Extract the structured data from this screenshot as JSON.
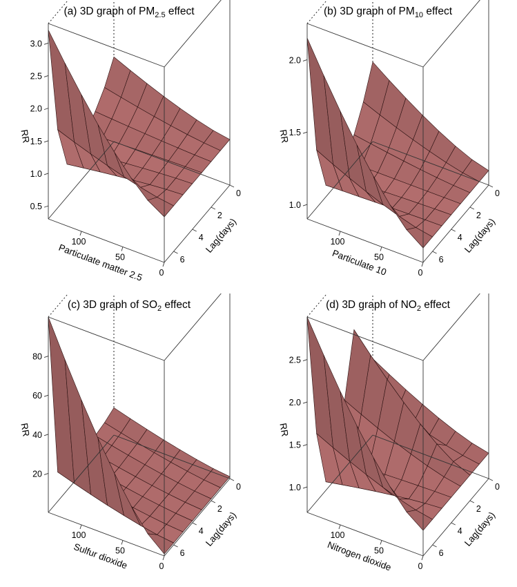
{
  "chart_data": [
    {
      "type": "surface3d",
      "panel": "a",
      "title": {
        "pre": "(a) 3D graph of PM",
        "sub": "2.5",
        "post": " effect"
      },
      "xlabel": "Particulate matter 2.5",
      "ylabel": "Lag(days)",
      "zlabel": "RR",
      "x_ticks": [
        "0",
        "50",
        "100"
      ],
      "y_ticks": [
        "0",
        "2",
        "4",
        "6"
      ],
      "z_ticks": [
        "0.5",
        "1.0",
        "1.5",
        "2.0",
        "2.5",
        "3.0"
      ],
      "xlim": [
        0,
        140
      ],
      "ylim": [
        0,
        7
      ],
      "zlim": [
        0.3,
        3.3
      ],
      "grid_x": [
        0,
        20,
        40,
        60,
        80,
        100,
        120,
        140
      ],
      "grid_lag": [
        0,
        1,
        2,
        3,
        4,
        5,
        6,
        7
      ],
      "rr_at_max_x": [
        1.6,
        1.3,
        1.1,
        0.95,
        0.85,
        0.8,
        1.5,
        3.2
      ],
      "surface_color": "#b56f6f"
    },
    {
      "type": "surface3d",
      "panel": "b",
      "title": {
        "pre": "(b) 3D graph of PM",
        "sub": "10",
        "post": " effect"
      },
      "xlabel": "Particulate 10",
      "ylabel": "Lag(days)",
      "zlabel": "RR",
      "x_ticks": [
        "0",
        "50",
        "100"
      ],
      "y_ticks": [
        "0",
        "2",
        "4",
        "6"
      ],
      "z_ticks": [
        "1.0",
        "1.5",
        "2.0"
      ],
      "xlim": [
        0,
        140
      ],
      "ylim": [
        0,
        7
      ],
      "zlim": [
        0.9,
        2.25
      ],
      "grid_x": [
        0,
        20,
        40,
        60,
        80,
        100,
        120,
        140
      ],
      "grid_lag": [
        0,
        1,
        2,
        3,
        4,
        5,
        6,
        7
      ],
      "rr_at_max_x": [
        1.45,
        1.25,
        1.1,
        1.0,
        0.97,
        0.98,
        1.3,
        2.15
      ],
      "surface_color": "#b56f6f"
    },
    {
      "type": "surface3d",
      "panel": "c",
      "title": {
        "pre": "(c) 3D graph of SO",
        "sub": "2",
        "post": " effect"
      },
      "xlabel": "Sulfur dioxide",
      "ylabel": "Lag(days)",
      "zlabel": "RR",
      "x_ticks": [
        "0",
        "50",
        "100"
      ],
      "y_ticks": [
        "0",
        "2",
        "4",
        "6"
      ],
      "z_ticks": [
        "20",
        "40",
        "60",
        "80"
      ],
      "xlim": [
        0,
        140
      ],
      "ylim": [
        0,
        7
      ],
      "zlim": [
        0,
        100
      ],
      "grid_x": [
        0,
        20,
        40,
        60,
        80,
        100,
        120,
        140
      ],
      "grid_lag": [
        0,
        1,
        2,
        3,
        4,
        5,
        6,
        7
      ],
      "rr_at_max_x": [
        14,
        12,
        11,
        10,
        10,
        10,
        15,
        100
      ],
      "surface_color": "#b56f6f"
    },
    {
      "type": "surface3d",
      "panel": "d",
      "title": {
        "pre": "(d) 3D graph of NO",
        "sub": "2",
        "post": " effect"
      },
      "xlabel": "Nitrogen dioxide",
      "ylabel": "Lag(days)",
      "zlabel": "RR",
      "x_ticks": [
        "0",
        "50",
        "100"
      ],
      "y_ticks": [
        "0",
        "2",
        "4",
        "6"
      ],
      "z_ticks": [
        "1.0",
        "1.5",
        "2.0",
        "2.5"
      ],
      "xlim": [
        0,
        140
      ],
      "ylim": [
        0,
        7
      ],
      "zlim": [
        0.7,
        3.0
      ],
      "grid_x": [
        0,
        20,
        40,
        60,
        80,
        100,
        120,
        140
      ],
      "grid_lag": [
        0,
        1,
        2,
        3,
        4,
        5,
        6,
        7
      ],
      "rr_at_max_x": [
        1.6,
        1.4,
        2.2,
        1.5,
        0.95,
        0.8,
        1.5,
        3.0
      ],
      "surface_color": "#b56f6f"
    }
  ]
}
